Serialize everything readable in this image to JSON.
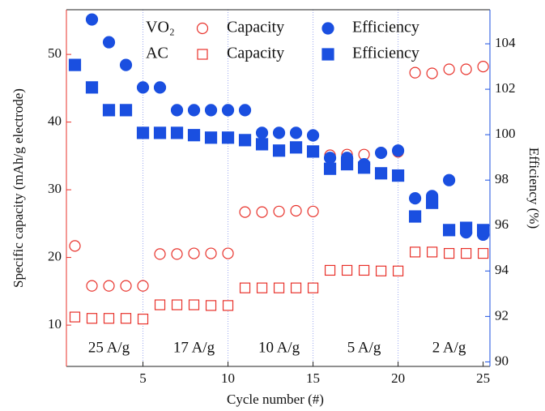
{
  "chart_data": {
    "type": "scatter",
    "x_label": "Cycle number (#)",
    "y_label": "Specific capacity (mAh/g electrode)",
    "y2_label": "Efficiency (%)",
    "x": [
      1,
      2,
      3,
      4,
      5,
      6,
      7,
      8,
      9,
      10,
      11,
      12,
      13,
      14,
      15,
      16,
      17,
      18,
      19,
      20,
      21,
      22,
      23,
      24,
      25
    ],
    "xlim": [
      0.5,
      25.4
    ],
    "xticks": [
      5,
      10,
      15,
      20,
      25
    ],
    "ylim": [
      3.9,
      56.6
    ],
    "yticks": [
      10,
      20,
      30,
      40,
      50
    ],
    "y2lim": [
      89.8,
      105.5
    ],
    "y2ticks": [
      90,
      92,
      94,
      96,
      98,
      100,
      102,
      104
    ],
    "annotations": [
      "25 A/g",
      "17 A/g",
      "10 A/g",
      "5 A/g",
      "2 A/g"
    ],
    "series": [
      {
        "name": "Capacity",
        "group": "VO₂",
        "marker": "open-circle",
        "color": "#e8312a",
        "values": [
          21.7,
          15.8,
          15.8,
          15.8,
          15.8,
          20.5,
          20.5,
          20.6,
          20.6,
          20.6,
          26.7,
          26.7,
          26.8,
          26.9,
          26.8,
          35.1,
          35.2,
          35.2,
          35.5,
          35.6,
          47.3,
          47.2,
          47.8,
          47.8,
          48.2
        ]
      },
      {
        "name": "Capacity",
        "group": "AC",
        "marker": "open-square",
        "color": "#e8312a",
        "values": [
          11.2,
          11,
          11,
          11,
          10.9,
          13,
          13,
          13,
          12.9,
          12.9,
          15.5,
          15.5,
          15.5,
          15.5,
          15.5,
          18.1,
          18.1,
          18.1,
          18,
          18,
          20.8,
          20.8,
          20.6,
          20.6,
          20.6
        ]
      },
      {
        "name": "Efficiency",
        "group": "VO₂",
        "marker": "filled-circle",
        "color": "#1a4fe0",
        "axis": "y2",
        "values": [
          null,
          105.07,
          104.07,
          103.07,
          102.08,
          102.08,
          101.08,
          101.08,
          101.08,
          101.08,
          101.08,
          100.08,
          100.08,
          100.08,
          99.97,
          98.98,
          98.98,
          98.7,
          99.2,
          99.3,
          97.2,
          97.3,
          98.0,
          95.7,
          95.6
        ]
      },
      {
        "name": "Efficiency",
        "group": "AC",
        "marker": "filled-square",
        "color": "#1a4fe0",
        "axis": "y2",
        "values": [
          103.07,
          102.08,
          101.08,
          101.08,
          100.08,
          100.08,
          100.08,
          99.98,
          99.87,
          99.87,
          99.76,
          99.58,
          99.3,
          99.44,
          99.26,
          98.5,
          98.7,
          98.55,
          98.3,
          98.2,
          96.4,
          97.0,
          95.8,
          95.9,
          95.8
        ]
      }
    ]
  }
}
